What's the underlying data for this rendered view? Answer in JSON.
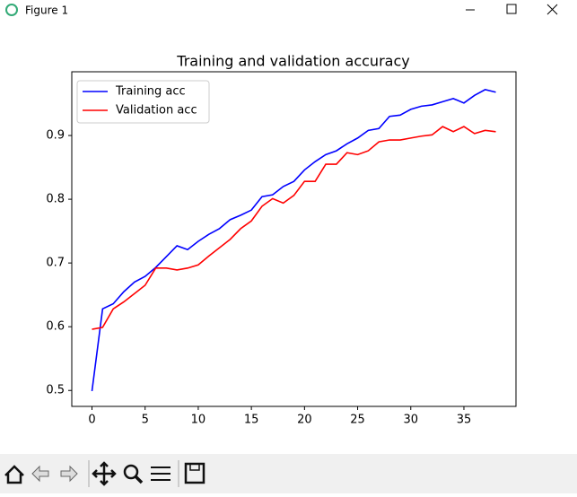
{
  "window": {
    "title": "Figure 1"
  },
  "chart_data": {
    "type": "line",
    "title": "Training and validation accuracy",
    "x": [
      0,
      1,
      2,
      3,
      4,
      5,
      6,
      7,
      8,
      9,
      10,
      11,
      12,
      13,
      14,
      15,
      16,
      17,
      18,
      19,
      20,
      21,
      22,
      23,
      24,
      25,
      26,
      27,
      28,
      29,
      30,
      31,
      32,
      33,
      34,
      35,
      36,
      37,
      38
    ],
    "series": [
      {
        "name": "Training acc",
        "color": "#0000ff",
        "values": [
          0.499,
          0.628,
          0.636,
          0.655,
          0.67,
          0.679,
          0.693,
          0.71,
          0.727,
          0.721,
          0.734,
          0.745,
          0.754,
          0.768,
          0.775,
          0.783,
          0.804,
          0.807,
          0.82,
          0.828,
          0.846,
          0.859,
          0.87,
          0.876,
          0.887,
          0.896,
          0.908,
          0.911,
          0.93,
          0.932,
          0.941,
          0.946,
          0.948,
          0.953,
          0.958,
          0.951,
          0.963,
          0.972,
          0.968
        ]
      },
      {
        "name": "Validation acc",
        "color": "#ff0000",
        "values": [
          0.596,
          0.599,
          0.628,
          0.639,
          0.652,
          0.665,
          0.692,
          0.692,
          0.689,
          0.692,
          0.697,
          0.711,
          0.724,
          0.737,
          0.754,
          0.766,
          0.789,
          0.801,
          0.794,
          0.806,
          0.828,
          0.828,
          0.855,
          0.855,
          0.873,
          0.87,
          0.876,
          0.89,
          0.893,
          0.893,
          0.896,
          0.899,
          0.901,
          0.914,
          0.906,
          0.914,
          0.903,
          0.908,
          0.906
        ]
      }
    ],
    "xlim": [
      -1.9,
      39.9
    ],
    "xticks": [
      0,
      5,
      10,
      15,
      20,
      25,
      30,
      35
    ],
    "ylim": [
      0.475,
      1.0
    ],
    "yticks": [
      0.5,
      0.6,
      0.7,
      0.8,
      0.9
    ],
    "legend": "upper left",
    "grid": false
  }
}
